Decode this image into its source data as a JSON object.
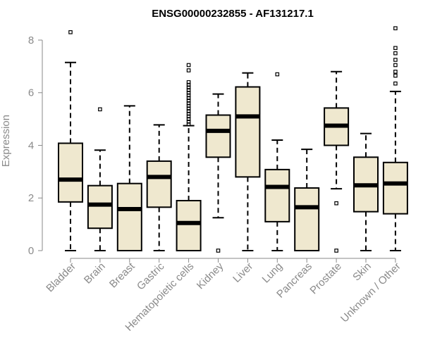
{
  "chart_data": {
    "type": "boxplot",
    "title": "ENSG00000232855 - AF131217.1",
    "xlabel": "",
    "ylabel": "Expression",
    "ylim": [
      0,
      8.4
    ],
    "yticks": [
      0,
      2,
      4,
      6,
      8
    ],
    "box_fill": "#efe8cf",
    "categories": [
      "Bladder",
      "Brain",
      "Breast",
      "Gastric",
      "Hematopoietic cells",
      "Kidney",
      "Liver",
      "Lung",
      "Pancreas",
      "Prostate",
      "Skin",
      "Unknown / Other"
    ],
    "boxes": [
      {
        "name": "Bladder",
        "whisker_low": 0,
        "q1": 1.85,
        "median": 2.7,
        "q3": 4.08,
        "whisker_high": 7.15,
        "outliers": [
          8.3
        ]
      },
      {
        "name": "Brain",
        "whisker_low": 0,
        "q1": 0.85,
        "median": 1.75,
        "q3": 2.47,
        "whisker_high": 3.82,
        "outliers": [
          5.37
        ]
      },
      {
        "name": "Breast",
        "whisker_low": 0,
        "q1": 0,
        "median": 1.58,
        "q3": 2.55,
        "whisker_high": 5.5,
        "outliers": []
      },
      {
        "name": "Gastric",
        "whisker_low": 0,
        "q1": 1.65,
        "median": 2.8,
        "q3": 3.4,
        "whisker_high": 4.78,
        "outliers": []
      },
      {
        "name": "Hematopoietic cells",
        "whisker_low": 0,
        "q1": 0,
        "median": 1.05,
        "q3": 1.9,
        "whisker_high": 4.75,
        "outliers": [
          4.8,
          4.9,
          5.0,
          5.1,
          5.2,
          5.3,
          5.4,
          5.5,
          5.6,
          5.7,
          5.8,
          5.9,
          6.0,
          6.1,
          6.2,
          6.3,
          6.4,
          6.85,
          7.05
        ]
      },
      {
        "name": "Kidney",
        "whisker_low": 1.25,
        "q1": 3.55,
        "median": 4.55,
        "q3": 5.15,
        "whisker_high": 5.95,
        "outliers": [
          0
        ]
      },
      {
        "name": "Liver",
        "whisker_low": 0,
        "q1": 2.8,
        "median": 5.1,
        "q3": 6.22,
        "whisker_high": 6.75,
        "outliers": []
      },
      {
        "name": "Lung",
        "whisker_low": 0,
        "q1": 1.1,
        "median": 2.42,
        "q3": 3.08,
        "whisker_high": 4.2,
        "outliers": [
          6.7
        ]
      },
      {
        "name": "Pancreas",
        "whisker_low": 0,
        "q1": 0,
        "median": 1.65,
        "q3": 2.38,
        "whisker_high": 3.85,
        "outliers": []
      },
      {
        "name": "Prostate",
        "whisker_low": 2.35,
        "q1": 4.0,
        "median": 4.75,
        "q3": 5.42,
        "whisker_high": 6.8,
        "outliers": [
          0,
          1.8
        ]
      },
      {
        "name": "Skin",
        "whisker_low": 0,
        "q1": 1.48,
        "median": 2.48,
        "q3": 3.55,
        "whisker_high": 4.45,
        "outliers": []
      },
      {
        "name": "Unknown / Other",
        "whisker_low": 0,
        "q1": 1.4,
        "median": 2.55,
        "q3": 3.35,
        "whisker_high": 6.05,
        "outliers": [
          6.35,
          6.65,
          6.8,
          7.05,
          7.25,
          7.5,
          7.7,
          8.45
        ]
      }
    ]
  }
}
